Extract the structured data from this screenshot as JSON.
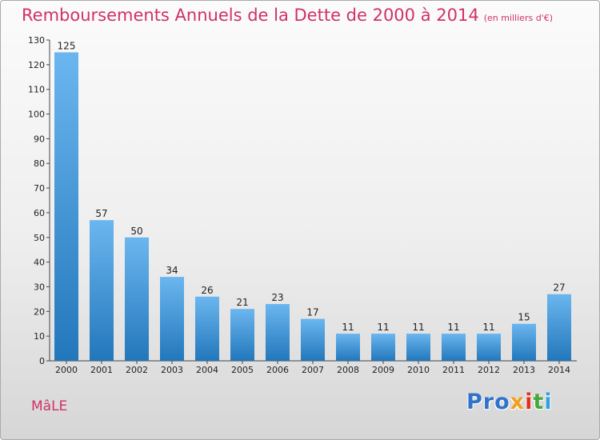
{
  "title": "Remboursements Annuels de la Dette de 2000 à 2014",
  "subtitle": "(en milliers d'€)",
  "town": "MâLE",
  "logo": {
    "p1": "Pro",
    "p2": "x",
    "p3": "i",
    "p4": "t",
    "p5": "i"
  },
  "colors": {
    "title": "#d0306a",
    "bar_light": "#6bb6ef",
    "bar_dark": "#2277bb"
  },
  "chart_data": {
    "type": "bar",
    "title": "Remboursements Annuels de la Dette de 2000 à 2014",
    "subtitle": "(en milliers d'€)",
    "categories": [
      "2000",
      "2001",
      "2002",
      "2003",
      "2004",
      "2005",
      "2006",
      "2007",
      "2008",
      "2009",
      "2010",
      "2011",
      "2012",
      "2013",
      "2014"
    ],
    "values": [
      125,
      57,
      50,
      34,
      26,
      21,
      23,
      17,
      11,
      11,
      11,
      11,
      11,
      15,
      27
    ],
    "ylim": [
      0,
      130
    ],
    "yticks": [
      0,
      10,
      20,
      30,
      40,
      50,
      60,
      70,
      80,
      90,
      100,
      110,
      120,
      130
    ],
    "grid": false,
    "legend": "none"
  }
}
